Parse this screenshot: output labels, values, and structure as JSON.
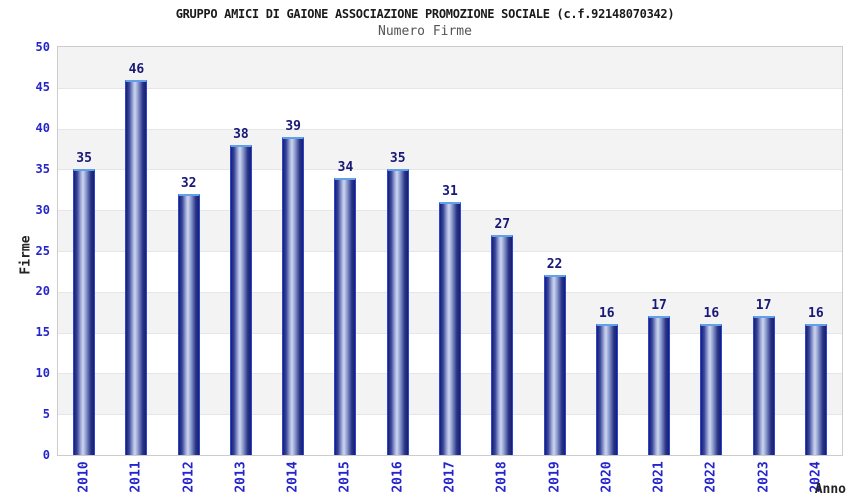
{
  "chart_data": {
    "type": "bar",
    "title": "GRUPPO AMICI DI GAIONE ASSOCIAZIONE PROMOZIONE SOCIALE (c.f.92148070342)",
    "subtitle": "Numero Firme",
    "categories": [
      "2010",
      "2011",
      "2012",
      "2013",
      "2014",
      "2015",
      "2016",
      "2017",
      "2018",
      "2019",
      "2020",
      "2021",
      "2022",
      "2023",
      "2024"
    ],
    "values": [
      35,
      46,
      32,
      38,
      39,
      34,
      35,
      31,
      27,
      22,
      16,
      17,
      16,
      17,
      16
    ],
    "xlabel": "Anno",
    "ylabel": "Firme",
    "ylim": [
      0,
      50
    ],
    "y_ticks": [
      0,
      5,
      10,
      15,
      20,
      25,
      30,
      35,
      40,
      45,
      50
    ],
    "bar_value_labels": true,
    "legend": "none",
    "grid": "alternating horizontal bands every 5 units, shaded band at top interval"
  },
  "colors": {
    "bar_border": "#2b46d6",
    "bar_gradient_dark": "#181f6e",
    "bar_gradient_light": "#cdd5ef",
    "bar_top_cap": "#61a1e9",
    "value_label": "#181875",
    "axis_tick_label": "#2525cc",
    "title_text": "#1a1a1a",
    "subtitle_text": "#555555",
    "axis_title_text": "#222222",
    "band_shaded": "#f3f3f3",
    "band_plain": "#ffffff",
    "gridline": "#e6e6e6",
    "plot_border": "#cccccc",
    "page_background": "#ffffff"
  }
}
